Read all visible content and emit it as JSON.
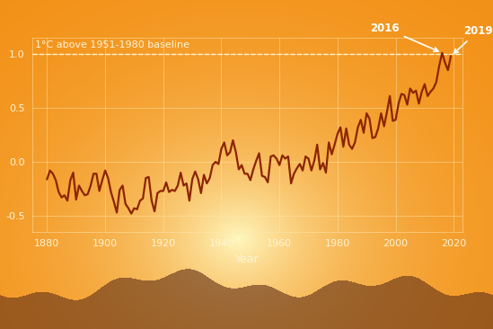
{
  "chart_data": {
    "type": "line",
    "x_label": "Year",
    "x": [
      1880,
      1881,
      1882,
      1883,
      1884,
      1885,
      1886,
      1887,
      1888,
      1889,
      1890,
      1891,
      1892,
      1893,
      1894,
      1895,
      1896,
      1897,
      1898,
      1899,
      1900,
      1901,
      1902,
      1903,
      1904,
      1905,
      1906,
      1907,
      1908,
      1909,
      1910,
      1911,
      1912,
      1913,
      1914,
      1915,
      1916,
      1917,
      1918,
      1919,
      1920,
      1921,
      1922,
      1923,
      1924,
      1925,
      1926,
      1927,
      1928,
      1929,
      1930,
      1931,
      1932,
      1933,
      1934,
      1935,
      1936,
      1937,
      1938,
      1939,
      1940,
      1941,
      1942,
      1943,
      1944,
      1945,
      1946,
      1947,
      1948,
      1949,
      1950,
      1951,
      1952,
      1953,
      1954,
      1955,
      1956,
      1957,
      1958,
      1959,
      1960,
      1961,
      1962,
      1963,
      1964,
      1965,
      1966,
      1967,
      1968,
      1969,
      1970,
      1971,
      1972,
      1973,
      1974,
      1975,
      1976,
      1977,
      1978,
      1979,
      1980,
      1981,
      1982,
      1983,
      1984,
      1985,
      1986,
      1987,
      1988,
      1989,
      1990,
      1991,
      1992,
      1993,
      1994,
      1995,
      1996,
      1997,
      1998,
      1999,
      2000,
      2001,
      2002,
      2003,
      2004,
      2005,
      2006,
      2007,
      2008,
      2009,
      2010,
      2011,
      2012,
      2013,
      2014,
      2015,
      2016,
      2017,
      2018,
      2019
    ],
    "values": [
      -0.16,
      -0.08,
      -0.11,
      -0.17,
      -0.28,
      -0.33,
      -0.31,
      -0.36,
      -0.17,
      -0.1,
      -0.35,
      -0.22,
      -0.27,
      -0.31,
      -0.3,
      -0.22,
      -0.11,
      -0.11,
      -0.27,
      -0.17,
      -0.08,
      -0.15,
      -0.28,
      -0.37,
      -0.47,
      -0.26,
      -0.22,
      -0.39,
      -0.43,
      -0.48,
      -0.43,
      -0.44,
      -0.36,
      -0.34,
      -0.15,
      -0.14,
      -0.36,
      -0.46,
      -0.29,
      -0.27,
      -0.27,
      -0.19,
      -0.28,
      -0.26,
      -0.27,
      -0.22,
      -0.1,
      -0.22,
      -0.2,
      -0.36,
      -0.16,
      -0.09,
      -0.16,
      -0.29,
      -0.12,
      -0.2,
      -0.15,
      -0.03,
      0.0,
      -0.02,
      0.12,
      0.18,
      0.06,
      0.09,
      0.2,
      0.09,
      -0.07,
      -0.03,
      -0.11,
      -0.11,
      -0.17,
      -0.07,
      0.01,
      0.08,
      -0.13,
      -0.14,
      -0.19,
      0.05,
      0.06,
      0.03,
      -0.03,
      0.06,
      0.03,
      0.05,
      -0.2,
      -0.11,
      -0.06,
      -0.02,
      -0.08,
      0.05,
      0.03,
      -0.08,
      0.01,
      0.16,
      -0.07,
      -0.01,
      -0.1,
      0.18,
      0.07,
      0.16,
      0.26,
      0.32,
      0.14,
      0.31,
      0.16,
      0.12,
      0.18,
      0.32,
      0.39,
      0.27,
      0.45,
      0.4,
      0.22,
      0.23,
      0.31,
      0.45,
      0.33,
      0.46,
      0.61,
      0.38,
      0.39,
      0.54,
      0.63,
      0.62,
      0.53,
      0.68,
      0.64,
      0.66,
      0.54,
      0.65,
      0.72,
      0.61,
      0.65,
      0.68,
      0.74,
      0.89,
      1.01,
      0.92,
      0.85,
      0.98
    ],
    "color": "#8b2500",
    "xlim": [
      1875,
      2023
    ],
    "ylim": [
      -0.65,
      1.15
    ],
    "xticks": [
      1880,
      1900,
      1920,
      1940,
      1960,
      1980,
      2000,
      2020
    ],
    "yticks": [
      {
        "value": -0.5,
        "label": "-0.5"
      },
      {
        "value": 0.0,
        "label": "0.0"
      },
      {
        "value": 0.5,
        "label": "0.5"
      },
      {
        "value": 1.0,
        "label": "1.0"
      }
    ],
    "grid": true,
    "reference_line": {
      "y": 1.0,
      "label": "1°C above 1951-1980 baseline"
    },
    "annotations": [
      {
        "text": "2016",
        "x": 2016,
        "y": 1.01
      },
      {
        "text": "2019",
        "x": 2019,
        "y": 0.98
      }
    ]
  }
}
